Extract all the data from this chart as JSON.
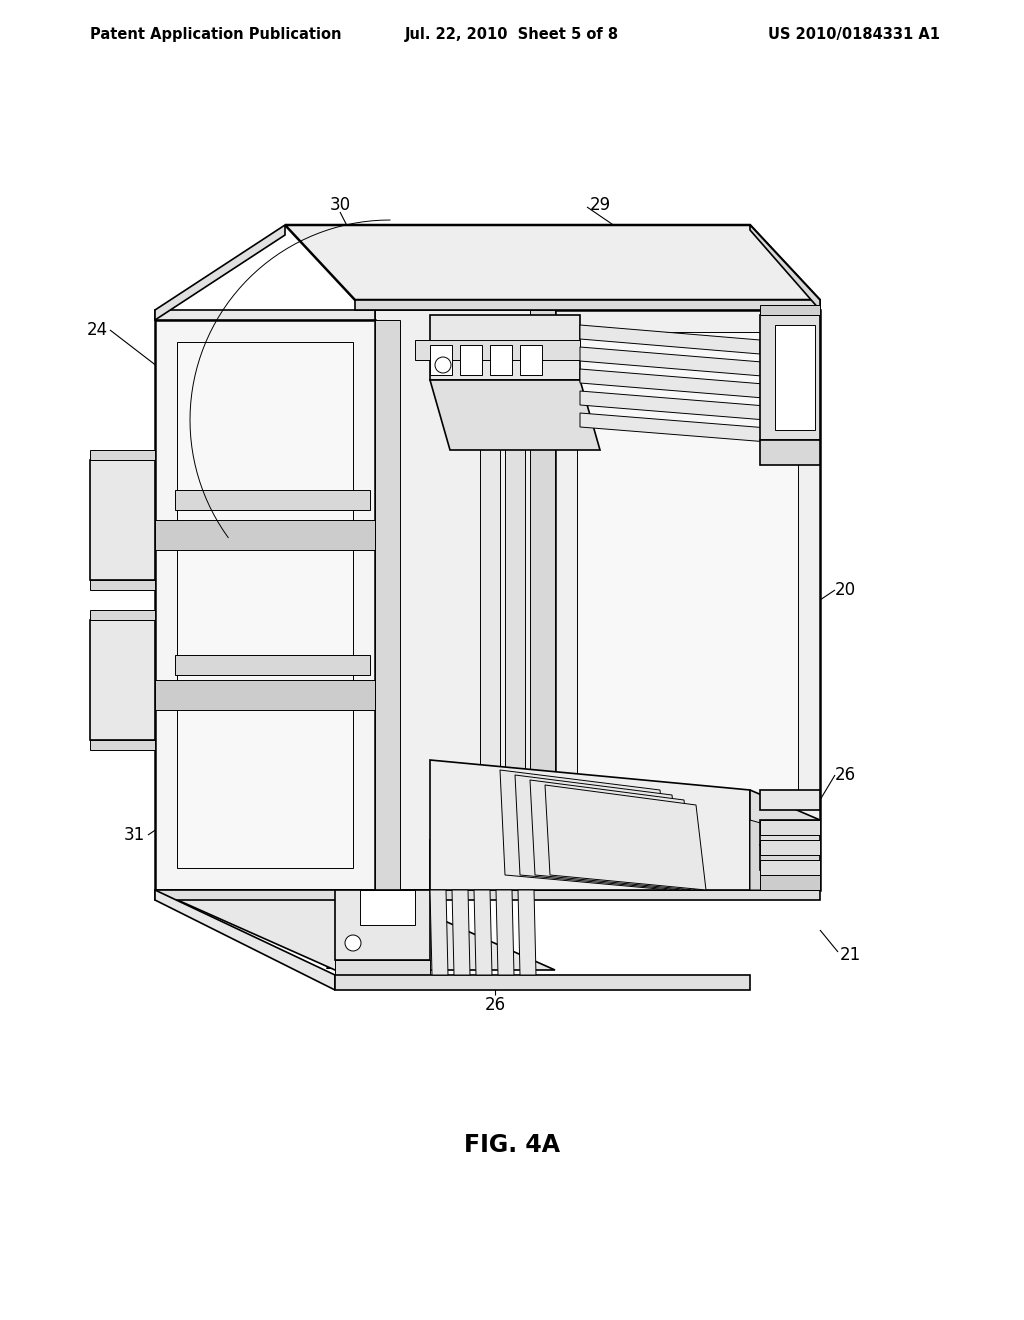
{
  "background_color": "#ffffff",
  "header_left": "Patent Application Publication",
  "header_center": "Jul. 22, 2010  Sheet 5 of 8",
  "header_right": "US 2010/0184331 A1",
  "figure_label": "FIG. 4A",
  "header_fontsize": 10.5,
  "figure_label_fontsize": 17,
  "lw": 1.2,
  "lw_thin": 0.7,
  "lw_thick": 1.8
}
